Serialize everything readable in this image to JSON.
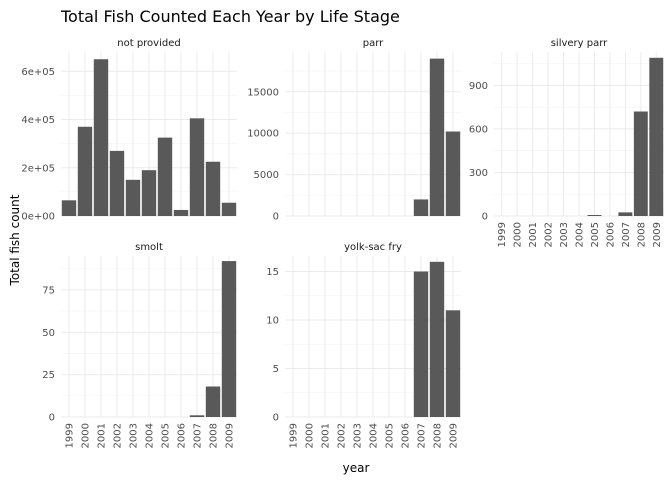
{
  "chart_data": {
    "type": "bar",
    "title": "Total Fish Counted Each Year by Life Stage",
    "xlabel": "year",
    "ylabel": "Total fish count",
    "bar_color": "#595959",
    "grid": true,
    "layout": "facet-wrap-3-columns",
    "categories": [
      "1999",
      "2000",
      "2001",
      "2002",
      "2003",
      "2004",
      "2005",
      "2006",
      "2007",
      "2008",
      "2009"
    ],
    "panels": [
      {
        "name": "not provided",
        "values": [
          65000,
          370000,
          650000,
          270000,
          150000,
          190000,
          325000,
          25000,
          405000,
          225000,
          55000
        ],
        "ylim": [
          0,
          680000
        ],
        "yticks": [
          0,
          200000,
          400000,
          600000
        ],
        "yticklabels": [
          "0e+00",
          "2e+05",
          "4e+05",
          "6e+05"
        ],
        "show_x_ticks": false
      },
      {
        "name": "parr",
        "values": [
          0,
          0,
          0,
          0,
          0,
          0,
          0,
          0,
          2000,
          19000,
          10200
        ],
        "ylim": [
          0,
          19800
        ],
        "yticks": [
          0,
          5000,
          10000,
          15000
        ],
        "yticklabels": [
          "0",
          "5000",
          "10000",
          "15000"
        ],
        "show_x_ticks": false
      },
      {
        "name": "silvery parr",
        "values": [
          0,
          0,
          0,
          0,
          0,
          0,
          5,
          0,
          25,
          720,
          1090
        ],
        "ylim": [
          0,
          1130
        ],
        "yticks": [
          0,
          300,
          600,
          900
        ],
        "yticklabels": [
          "0",
          "300",
          "600",
          "900"
        ],
        "show_x_ticks": true
      },
      {
        "name": "smolt",
        "values": [
          0,
          0,
          0,
          0,
          0,
          0,
          0,
          0,
          1,
          18,
          92
        ],
        "ylim": [
          0,
          95
        ],
        "yticks": [
          0,
          25,
          50,
          75
        ],
        "yticklabels": [
          "0",
          "25",
          "50",
          "75"
        ],
        "show_x_ticks": true
      },
      {
        "name": "yolk-sac fry",
        "values": [
          0,
          0,
          0,
          0,
          0,
          0,
          0,
          0,
          15,
          16,
          11
        ],
        "ylim": [
          0,
          16.6
        ],
        "yticks": [
          0,
          5,
          10,
          15
        ],
        "yticklabels": [
          "0",
          "5",
          "10",
          "15"
        ],
        "show_x_ticks": true
      }
    ]
  }
}
